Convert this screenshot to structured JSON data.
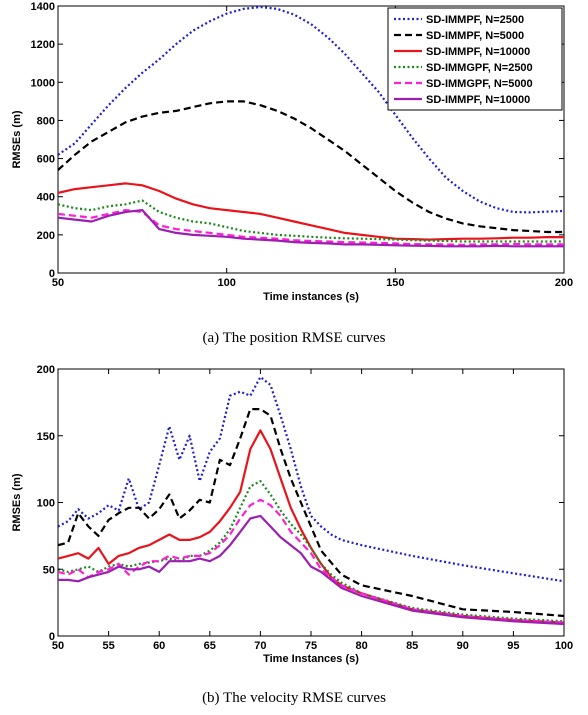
{
  "chart_data": [
    {
      "type": "line",
      "caption": "(a) The position RMSE curves",
      "xlabel": "Time instances (s)",
      "ylabel": "RMSEs (m)",
      "xlim": [
        50,
        200
      ],
      "ylim": [
        0,
        1400
      ],
      "xticks": [
        50,
        100,
        150,
        200
      ],
      "yticks": [
        0,
        200,
        400,
        600,
        800,
        1000,
        1200,
        1400
      ],
      "grid": false,
      "legend": "top-right",
      "series": [
        {
          "name": "SD-IMMPF, N=2500",
          "color": "#1f1fd6",
          "dash": "dot",
          "x": [
            50,
            55,
            60,
            65,
            70,
            75,
            80,
            85,
            90,
            95,
            100,
            105,
            110,
            115,
            120,
            125,
            130,
            135,
            140,
            145,
            150,
            155,
            160,
            165,
            170,
            175,
            180,
            185,
            190,
            195,
            200
          ],
          "y": [
            620,
            680,
            780,
            880,
            970,
            1050,
            1120,
            1200,
            1270,
            1320,
            1360,
            1385,
            1395,
            1385,
            1355,
            1305,
            1235,
            1150,
            1050,
            950,
            830,
            710,
            600,
            500,
            430,
            375,
            340,
            320,
            318,
            322,
            325
          ]
        },
        {
          "name": "SD-IMMPF, N=5000",
          "color": "#000000",
          "dash": "dash",
          "x": [
            50,
            55,
            60,
            65,
            70,
            75,
            80,
            85,
            90,
            95,
            100,
            105,
            110,
            115,
            120,
            125,
            130,
            135,
            140,
            145,
            150,
            155,
            160,
            165,
            170,
            175,
            180,
            185,
            190,
            195,
            200
          ],
          "y": [
            540,
            620,
            690,
            740,
            790,
            820,
            840,
            850,
            870,
            890,
            900,
            900,
            880,
            850,
            810,
            760,
            700,
            640,
            570,
            500,
            430,
            370,
            320,
            285,
            260,
            245,
            235,
            225,
            220,
            215,
            215
          ]
        },
        {
          "name": "SD-IMMPF, N=10000",
          "color": "#e8141c",
          "dash": "solid",
          "x": [
            50,
            55,
            60,
            65,
            70,
            75,
            80,
            85,
            90,
            95,
            100,
            105,
            110,
            115,
            120,
            125,
            130,
            135,
            140,
            145,
            150,
            155,
            160,
            165,
            170,
            175,
            180,
            185,
            190,
            195,
            200
          ],
          "y": [
            420,
            440,
            450,
            460,
            470,
            460,
            430,
            390,
            360,
            340,
            330,
            320,
            310,
            290,
            270,
            250,
            230,
            210,
            200,
            190,
            180,
            178,
            175,
            178,
            180,
            180,
            182,
            185,
            185,
            188,
            188
          ]
        },
        {
          "name": "SD-IMMGPF, N=2500",
          "color": "#1a8a1a",
          "dash": "dot",
          "x": [
            50,
            55,
            60,
            65,
            70,
            75,
            80,
            85,
            90,
            95,
            100,
            105,
            110,
            115,
            120,
            125,
            130,
            135,
            140,
            145,
            150,
            155,
            160,
            165,
            170,
            175,
            180,
            185,
            190,
            195,
            200
          ],
          "y": [
            360,
            340,
            330,
            350,
            360,
            380,
            320,
            290,
            270,
            260,
            240,
            220,
            210,
            200,
            195,
            190,
            185,
            182,
            180,
            178,
            175,
            172,
            170,
            168,
            165,
            165,
            165,
            165,
            165,
            165,
            165
          ]
        },
        {
          "name": "SD-IMMGPF, N=5000",
          "color": "#ff1fd6",
          "dash": "dash",
          "x": [
            50,
            55,
            60,
            65,
            70,
            75,
            80,
            85,
            90,
            95,
            100,
            105,
            110,
            115,
            120,
            125,
            130,
            135,
            140,
            145,
            150,
            155,
            160,
            165,
            170,
            175,
            180,
            185,
            190,
            195,
            200
          ],
          "y": [
            310,
            300,
            290,
            310,
            330,
            320,
            250,
            230,
            220,
            210,
            200,
            190,
            185,
            180,
            172,
            168,
            165,
            162,
            160,
            158,
            155,
            152,
            150,
            150,
            148,
            150,
            150,
            152,
            150,
            150,
            150
          ]
        },
        {
          "name": "SD-IMMPF, N=10000",
          "color": "#9b1fb0",
          "dash": "solid",
          "x": [
            50,
            55,
            60,
            65,
            70,
            75,
            80,
            85,
            90,
            95,
            100,
            105,
            110,
            115,
            120,
            125,
            130,
            135,
            140,
            145,
            150,
            155,
            160,
            165,
            170,
            175,
            180,
            185,
            190,
            195,
            200
          ],
          "y": [
            290,
            280,
            270,
            300,
            320,
            330,
            230,
            210,
            200,
            195,
            190,
            180,
            175,
            170,
            162,
            158,
            155,
            150,
            150,
            148,
            145,
            143,
            142,
            140,
            140,
            140,
            142,
            140,
            140,
            140,
            140
          ]
        }
      ]
    },
    {
      "type": "line",
      "caption": "(b) The velocity RMSE curves",
      "xlabel": "Time Instances (s)",
      "ylabel": "RMSEs (m)",
      "xlim": [
        50,
        100
      ],
      "ylim": [
        0,
        200
      ],
      "xticks": [
        50,
        55,
        60,
        65,
        70,
        75,
        80,
        85,
        90,
        95,
        100
      ],
      "yticks": [
        0,
        50,
        100,
        150,
        200
      ],
      "grid": false,
      "series": [
        {
          "name": "SD-IMMPF, N=2500",
          "color": "#1f1fd6",
          "dash": "dot",
          "x": [
            50,
            51,
            52,
            53,
            54,
            55,
            56,
            57,
            58,
            59,
            60,
            61,
            62,
            63,
            64,
            65,
            66,
            67,
            68,
            69,
            70,
            71,
            72,
            73,
            74,
            75,
            76,
            77,
            78,
            80,
            85,
            90,
            95,
            100
          ],
          "y": [
            82,
            86,
            95,
            88,
            92,
            98,
            94,
            118,
            95,
            100,
            128,
            157,
            132,
            150,
            116,
            138,
            148,
            180,
            183,
            180,
            194,
            188,
            165,
            140,
            112,
            90,
            82,
            76,
            72,
            68,
            60,
            53,
            47,
            41
          ]
        },
        {
          "name": "SD-IMMPF, N=5000",
          "color": "#000000",
          "dash": "dash",
          "x": [
            50,
            51,
            52,
            53,
            54,
            55,
            56,
            57,
            58,
            59,
            60,
            61,
            62,
            63,
            64,
            65,
            66,
            67,
            68,
            69,
            70,
            71,
            72,
            73,
            74,
            75,
            76,
            77,
            78,
            80,
            85,
            90,
            95,
            100
          ],
          "y": [
            68,
            70,
            92,
            82,
            75,
            87,
            92,
            96,
            96,
            88,
            95,
            106,
            88,
            94,
            102,
            100,
            132,
            128,
            148,
            170,
            170,
            165,
            140,
            118,
            100,
            82,
            64,
            55,
            46,
            38,
            30,
            20,
            18,
            15
          ]
        },
        {
          "name": "SD-IMMPF, N=10000",
          "color": "#e8141c",
          "dash": "solid",
          "x": [
            50,
            51,
            52,
            53,
            54,
            55,
            56,
            57,
            58,
            59,
            60,
            61,
            62,
            63,
            64,
            65,
            66,
            67,
            68,
            69,
            70,
            71,
            72,
            73,
            74,
            75,
            76,
            77,
            78,
            80,
            85,
            90,
            95,
            100
          ],
          "y": [
            58,
            60,
            62,
            58,
            66,
            54,
            60,
            62,
            66,
            68,
            72,
            76,
            72,
            72,
            74,
            78,
            86,
            96,
            108,
            140,
            154,
            140,
            118,
            96,
            80,
            66,
            54,
            44,
            38,
            32,
            20,
            15,
            12,
            10
          ]
        },
        {
          "name": "SD-IMMGPF, N=2500",
          "color": "#1a8a1a",
          "dash": "dot",
          "x": [
            50,
            51,
            52,
            53,
            54,
            55,
            56,
            57,
            58,
            59,
            60,
            61,
            62,
            63,
            64,
            65,
            66,
            67,
            68,
            69,
            70,
            71,
            72,
            73,
            74,
            75,
            76,
            77,
            78,
            80,
            85,
            90,
            95,
            100
          ],
          "y": [
            50,
            48,
            50,
            52,
            48,
            52,
            54,
            52,
            54,
            55,
            56,
            58,
            56,
            60,
            60,
            64,
            70,
            80,
            96,
            112,
            116,
            106,
            94,
            84,
            76,
            66,
            54,
            46,
            40,
            32,
            21,
            16,
            13,
            11
          ]
        },
        {
          "name": "SD-IMMGPF, N=5000",
          "color": "#ff1fd6",
          "dash": "dash",
          "x": [
            50,
            51,
            52,
            53,
            54,
            55,
            56,
            57,
            58,
            59,
            60,
            61,
            62,
            63,
            64,
            65,
            66,
            67,
            68,
            69,
            70,
            71,
            72,
            73,
            74,
            75,
            76,
            77,
            78,
            80,
            85,
            90,
            95,
            100
          ],
          "y": [
            48,
            46,
            50,
            44,
            48,
            50,
            54,
            46,
            52,
            56,
            56,
            60,
            58,
            60,
            60,
            62,
            68,
            76,
            88,
            98,
            102,
            98,
            90,
            78,
            70,
            62,
            50,
            44,
            38,
            32,
            20,
            15,
            12,
            10
          ]
        },
        {
          "name": "SD-IMMPF, N=10000",
          "color": "#9b1fb0",
          "dash": "solid",
          "x": [
            50,
            51,
            52,
            53,
            54,
            55,
            56,
            57,
            58,
            59,
            60,
            61,
            62,
            63,
            64,
            65,
            66,
            67,
            68,
            69,
            70,
            71,
            72,
            73,
            74,
            75,
            76,
            77,
            78,
            80,
            85,
            90,
            95,
            100
          ],
          "y": [
            42,
            42,
            41,
            44,
            46,
            48,
            52,
            50,
            50,
            52,
            48,
            56,
            56,
            56,
            58,
            56,
            60,
            68,
            78,
            88,
            90,
            82,
            74,
            68,
            62,
            52,
            48,
            42,
            36,
            30,
            19,
            14,
            11,
            9
          ]
        }
      ]
    }
  ]
}
